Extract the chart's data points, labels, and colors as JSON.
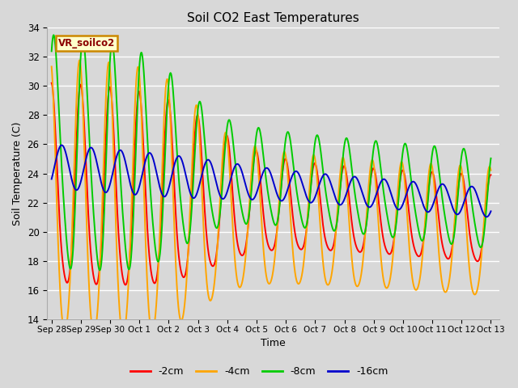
{
  "title": "Soil CO2 East Temperatures",
  "xlabel": "Time",
  "ylabel": "Soil Temperature (C)",
  "ylim": [
    14,
    34
  ],
  "series_labels": [
    "-2cm",
    "-4cm",
    "-8cm",
    "-16cm"
  ],
  "series_colors": [
    "#ff0000",
    "#ffa500",
    "#00cc00",
    "#0000cc"
  ],
  "background_color": "#d8d8d8",
  "plot_bg_color": "#d8d8d8",
  "grid_color": "#ffffff",
  "legend_label": "VR_soilco2",
  "yticks": [
    14,
    16,
    18,
    20,
    22,
    24,
    26,
    28,
    30,
    32,
    34
  ],
  "tick_labels": [
    "Sep 28",
    "Sep 29",
    "Sep 30",
    "Oct 1",
    "Oct 2",
    "Oct 3",
    "Oct 4",
    "Oct 5",
    "Oct 6",
    "Oct 7",
    "Oct 8",
    "Oct 9",
    "Oct 10",
    "Oct 11",
    "Oct 12",
    "Oct 13"
  ],
  "tick_positions": [
    0,
    1,
    2,
    3,
    4,
    5,
    6,
    7,
    8,
    9,
    10,
    11,
    12,
    13,
    14,
    15
  ]
}
